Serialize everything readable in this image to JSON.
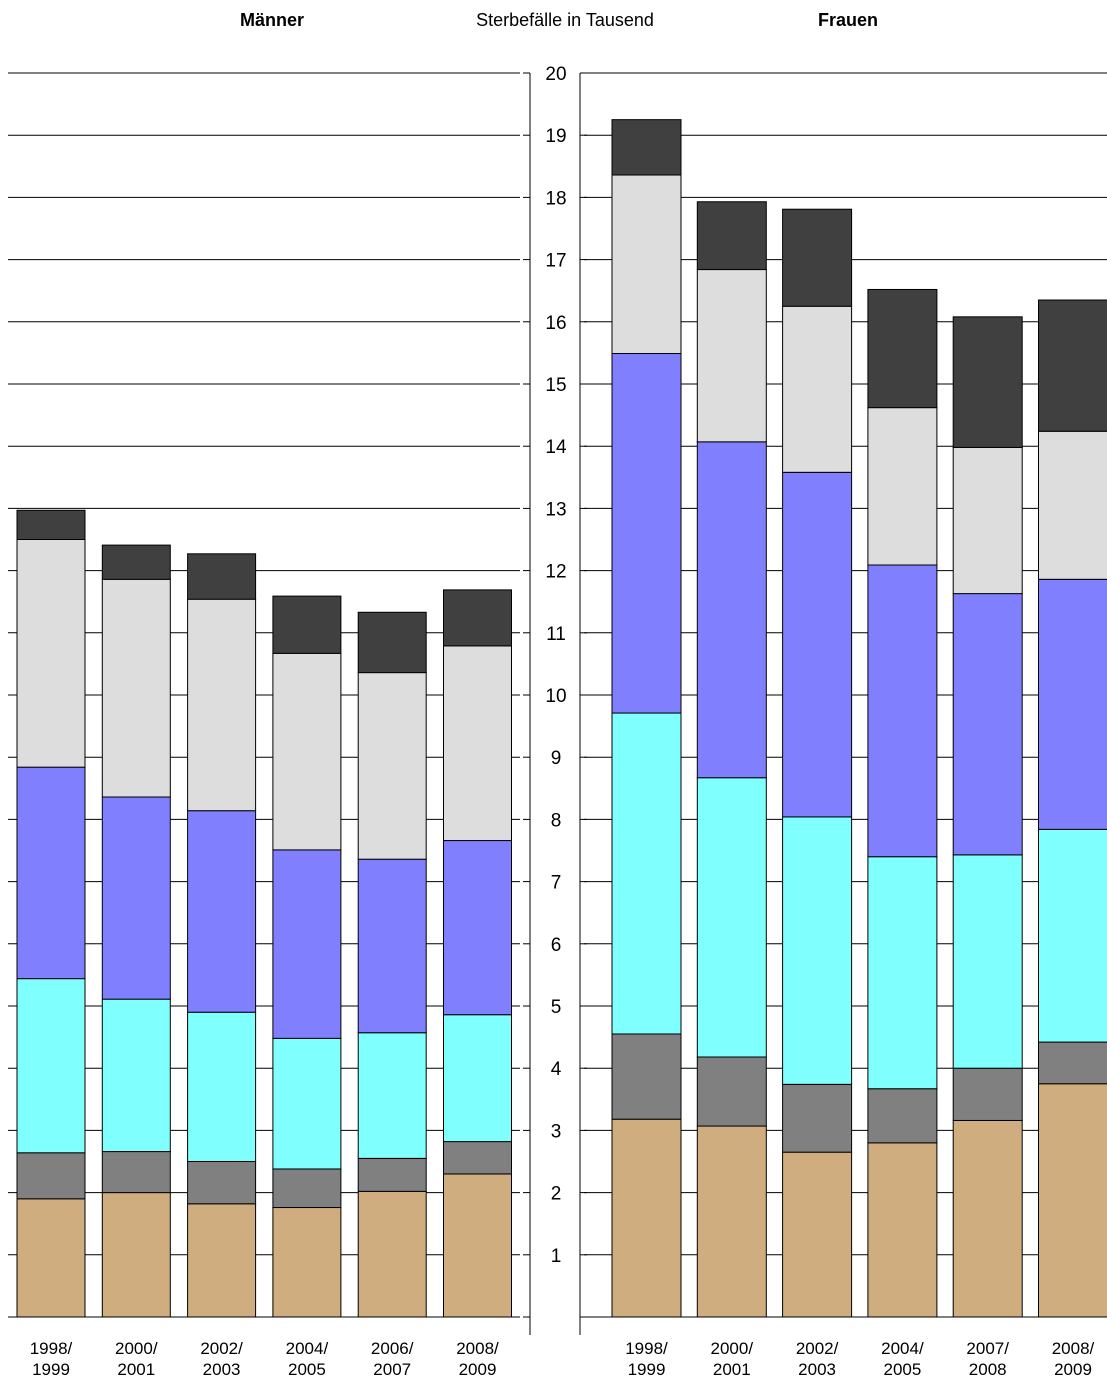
{
  "chart_data": {
    "type": "bar",
    "stacked": true,
    "title": "Sterbefälle in Tausend",
    "ylabel": "",
    "xlabel": "",
    "ylim": [
      0,
      20
    ],
    "yticks": [
      "1",
      "2",
      "3",
      "4",
      "5",
      "6",
      "7",
      "8",
      "9",
      "10",
      "11",
      "12",
      "13",
      "14",
      "15",
      "16",
      "17",
      "18",
      "19",
      "20"
    ],
    "grid": true,
    "colors": [
      "#cfad7e",
      "#808080",
      "#80ffff",
      "#8080ff",
      "#dddddd",
      "#404040"
    ],
    "panels": [
      {
        "title": "Männer",
        "categories": [
          [
            "1998/",
            "1999"
          ],
          [
            "2000/",
            "2001"
          ],
          [
            "2002/",
            "2003"
          ],
          [
            "2004/",
            "2005"
          ],
          [
            "2006/",
            "2007"
          ],
          [
            "2008/",
            "2009"
          ]
        ],
        "series": [
          {
            "values": [
              1.9,
              2.0,
              1.82,
              1.76,
              2.02,
              2.3
            ]
          },
          {
            "values": [
              0.74,
              0.66,
              0.68,
              0.62,
              0.53,
              0.52
            ]
          },
          {
            "values": [
              2.8,
              2.45,
              2.4,
              2.1,
              2.02,
              2.04
            ]
          },
          {
            "values": [
              3.4,
              3.25,
              3.24,
              3.03,
              2.79,
              2.8
            ]
          },
          {
            "values": [
              3.66,
              3.5,
              3.4,
              3.16,
              3.0,
              3.13
            ]
          },
          {
            "values": [
              0.47,
              0.55,
              0.73,
              0.92,
              0.97,
              0.9
            ]
          }
        ]
      },
      {
        "title": "Frauen",
        "categories": [
          [
            "1998/",
            "1999"
          ],
          [
            "2000/",
            "2001"
          ],
          [
            "2002/",
            "2003"
          ],
          [
            "2004/",
            "2005"
          ],
          [
            "2007/",
            "2008"
          ],
          [
            "2008/",
            "2009"
          ]
        ],
        "series": [
          {
            "values": [
              3.18,
              3.07,
              2.65,
              2.8,
              3.16,
              3.75
            ]
          },
          {
            "values": [
              1.37,
              1.11,
              1.09,
              0.87,
              0.84,
              0.67
            ]
          },
          {
            "values": [
              5.16,
              4.49,
              4.3,
              3.73,
              3.43,
              3.42
            ]
          },
          {
            "values": [
              5.78,
              5.4,
              5.54,
              4.69,
              4.2,
              4.02
            ]
          },
          {
            "values": [
              2.87,
              2.77,
              2.67,
              2.53,
              2.35,
              2.38
            ]
          },
          {
            "values": [
              0.89,
              1.09,
              1.56,
              1.9,
              2.1,
              2.11
            ]
          }
        ]
      }
    ]
  }
}
